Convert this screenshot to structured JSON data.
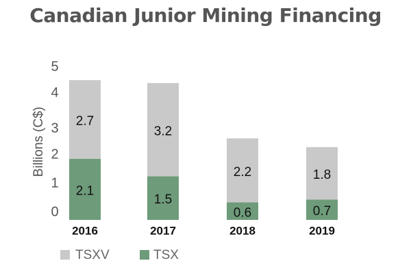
{
  "chart_data": {
    "type": "bar",
    "stacked": true,
    "title": "Canadian Junior Mining Financing",
    "ylabel": "Billions (C$)",
    "xlabel": "",
    "ylim": [
      0,
      5
    ],
    "yticks": [
      "5",
      "4",
      "3",
      "2",
      "1",
      "0"
    ],
    "categories": [
      "2016",
      "2017",
      "2018",
      "2019"
    ],
    "series": [
      {
        "name": "TSX",
        "values": [
          2.1,
          1.5,
          0.6,
          0.7
        ],
        "labels": [
          "2.1",
          "1.5",
          "0.6",
          "0.7"
        ],
        "color": "#6e9b7a"
      },
      {
        "name": "TSXV",
        "values": [
          2.7,
          3.2,
          2.2,
          1.8
        ],
        "labels": [
          "2.7",
          "3.2",
          "2.2",
          "1.8"
        ],
        "color": "#c9c9c9"
      }
    ],
    "legend": {
      "position": "bottom-left",
      "order": [
        "TSXV",
        "TSX"
      ]
    },
    "grid": false
  }
}
